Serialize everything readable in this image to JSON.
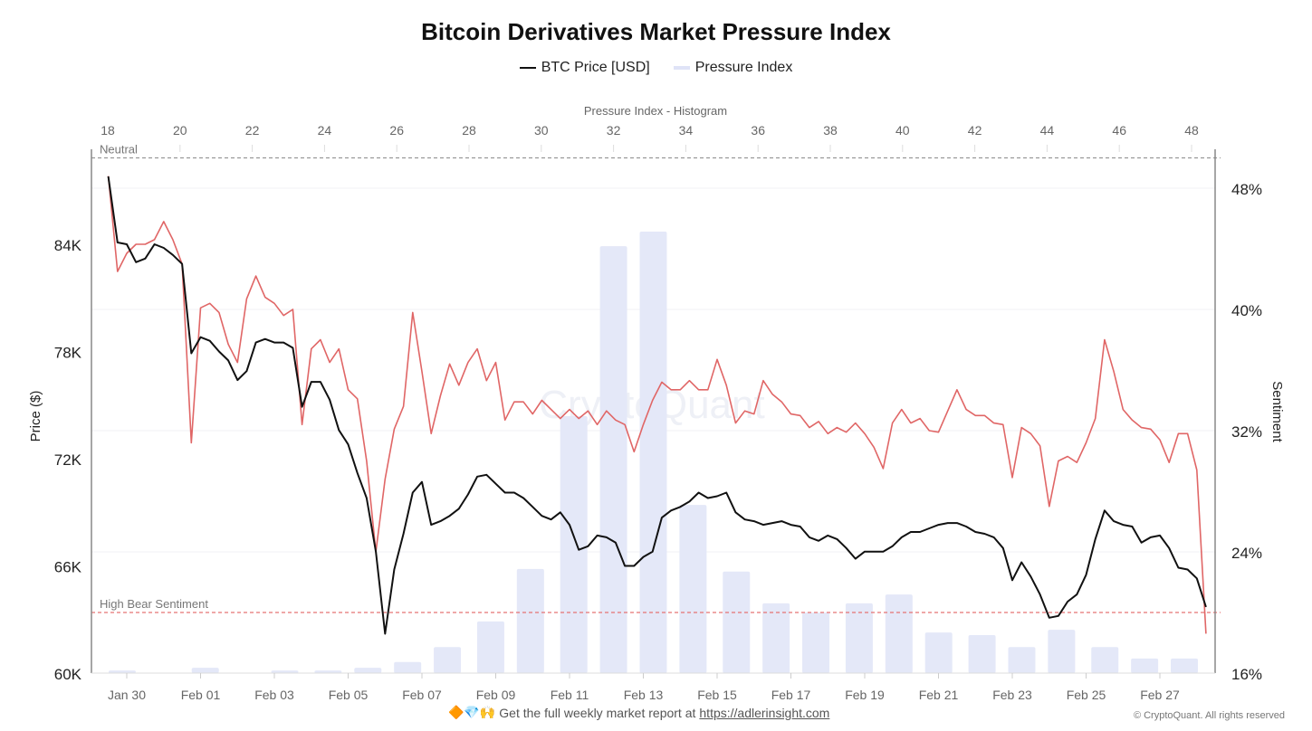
{
  "title": "Bitcoin Derivatives Market Pressure Index",
  "legend": [
    {
      "label": "BTC Price [USD]",
      "color": "#111111"
    },
    {
      "label": "Pressure Index",
      "color": "#dfe3f7"
    }
  ],
  "watermark": "CryptoQuant",
  "footer": {
    "emojis": "🔶💎🙌",
    "text": "Get the full weekly market report at",
    "link": "https://adlerinsight.com",
    "copyright": "© CryptoQuant. All rights reserved"
  },
  "chart_data": {
    "type": "line",
    "top_axis": {
      "label": "Pressure Index - Histogram",
      "ticks": [
        "18",
        "20",
        "22",
        "24",
        "26",
        "28",
        "30",
        "32",
        "34",
        "36",
        "38",
        "40",
        "42",
        "44",
        "46",
        "48"
      ],
      "range": [
        18,
        48.5
      ]
    },
    "left_axis": {
      "label": "Price ($)",
      "ticks": [
        "60K",
        "66K",
        "72K",
        "78K",
        "84K"
      ],
      "range": [
        60,
        89
      ]
    },
    "right_axis": {
      "label": "Sentiment",
      "ticks": [
        "16%",
        "24%",
        "32%",
        "40%",
        "48%"
      ],
      "range": [
        16,
        50.5
      ]
    },
    "x_ticks": [
      "Jan 30",
      "Feb 01",
      "Feb 03",
      "Feb 05",
      "Feb 07",
      "Feb 09",
      "Feb 11",
      "Feb 13",
      "Feb 15",
      "Feb 17",
      "Feb 19",
      "Feb 21",
      "Feb 23",
      "Feb 25",
      "Feb 27"
    ],
    "reference_lines": [
      {
        "label": "Neutral",
        "value": 50,
        "color": "#999999"
      },
      {
        "label": "High Bear Sentiment",
        "value": 20,
        "color": "#e57373"
      }
    ],
    "grid": true,
    "legend_position": "top",
    "time": {
      "start": "Jan 29 12:00",
      "interval_hours": 6
    },
    "series": [
      {
        "name": "BTC Price [USD]",
        "axis": "left",
        "unit": "K USD",
        "color": "#111111",
        "values": [
          87.8,
          84.1,
          84.0,
          83.0,
          83.2,
          84.0,
          83.8,
          83.4,
          82.9,
          77.9,
          78.8,
          78.6,
          78.0,
          77.5,
          76.4,
          76.9,
          78.5,
          78.7,
          78.5,
          78.5,
          78.2,
          74.9,
          76.3,
          76.3,
          75.3,
          73.6,
          72.8,
          71.2,
          69.8,
          66.8,
          62.2,
          65.8,
          67.8,
          70.1,
          70.7,
          68.3,
          68.5,
          68.8,
          69.2,
          70.0,
          71.0,
          71.1,
          70.6,
          70.1,
          70.1,
          69.8,
          69.3,
          68.8,
          68.6,
          69.0,
          68.3,
          66.9,
          67.1,
          67.7,
          67.6,
          67.3,
          66.0,
          66.0,
          66.5,
          66.8,
          68.7,
          69.1,
          69.3,
          69.6,
          70.1,
          69.8,
          69.9,
          70.1,
          69.0,
          68.6,
          68.5,
          68.3,
          68.4,
          68.5,
          68.3,
          68.2,
          67.6,
          67.4,
          67.7,
          67.5,
          67.0,
          66.4,
          66.8,
          66.8,
          66.8,
          67.1,
          67.6,
          67.9,
          67.9,
          68.1,
          68.3,
          68.4,
          68.4,
          68.2,
          67.9,
          67.8,
          67.6,
          67.0,
          65.2,
          66.2,
          65.4,
          64.4,
          63.1,
          63.2,
          64.0,
          64.4,
          65.5,
          67.5,
          69.1,
          68.5,
          68.3,
          68.2,
          67.3,
          67.6,
          67.7,
          67.0,
          65.9,
          65.8,
          65.3,
          63.7
        ]
      },
      {
        "axis": "right",
        "unit": "%",
        "color": "#e06666",
        "values": [
          48.8,
          42.5,
          43.7,
          44.3,
          44.3,
          44.6,
          45.8,
          44.6,
          43.0,
          31.2,
          40.1,
          40.4,
          39.8,
          37.7,
          36.5,
          40.7,
          42.2,
          40.8,
          40.4,
          39.6,
          40.0,
          32.4,
          37.4,
          38.0,
          36.5,
          37.4,
          34.7,
          34.1,
          30.0,
          24.0,
          28.8,
          32.1,
          33.6,
          39.8,
          35.9,
          31.8,
          34.3,
          36.4,
          35.0,
          36.5,
          37.4,
          35.3,
          36.5,
          32.7,
          33.9,
          33.9,
          33.1,
          34.0,
          33.4,
          32.8,
          33.4,
          32.8,
          33.3,
          32.4,
          33.3,
          32.7,
          32.4,
          30.6,
          32.4,
          34.0,
          35.2,
          34.7,
          34.7,
          35.3,
          34.7,
          34.7,
          36.7,
          35.0,
          32.5,
          33.3,
          33.1,
          35.3,
          34.4,
          33.9,
          33.1,
          33.0,
          32.2,
          32.6,
          31.8,
          32.2,
          31.9,
          32.5,
          31.8,
          30.9,
          29.5,
          32.5,
          33.4,
          32.5,
          32.8,
          32.0,
          31.9,
          33.3,
          34.7,
          33.4,
          33.0,
          33.0,
          32.5,
          32.4,
          28.9,
          32.2,
          31.8,
          31.0,
          27.0,
          30.0,
          30.3,
          29.9,
          31.2,
          32.8,
          38.0,
          35.9,
          33.4,
          32.7,
          32.2,
          32.1,
          31.4,
          29.9,
          31.8,
          31.8,
          29.4,
          18.6
        ]
      }
    ],
    "histogram": {
      "name": "Pressure Index",
      "color": "#e4e8f8",
      "bin_centers": [
        18.4,
        19.5,
        20.7,
        21.8,
        22.9,
        24.1,
        25.2,
        26.3,
        27.4,
        28.6,
        29.7,
        30.9,
        32.0,
        33.1,
        34.2,
        35.4,
        36.5,
        37.6,
        38.8,
        39.9,
        41.0,
        42.2,
        43.3,
        44.4,
        45.6,
        46.7,
        47.8
      ],
      "relative_frequency": [
        0.6,
        0,
        1.2,
        0,
        0.6,
        0.6,
        1.2,
        2.5,
        5.9,
        11.7,
        23.6,
        58.2,
        96.7,
        100,
        38.1,
        23.0,
        15.8,
        13.7,
        15.8,
        17.8,
        9.2,
        8.6,
        5.9,
        9.8,
        5.9,
        3.3,
        3.3
      ]
    }
  }
}
